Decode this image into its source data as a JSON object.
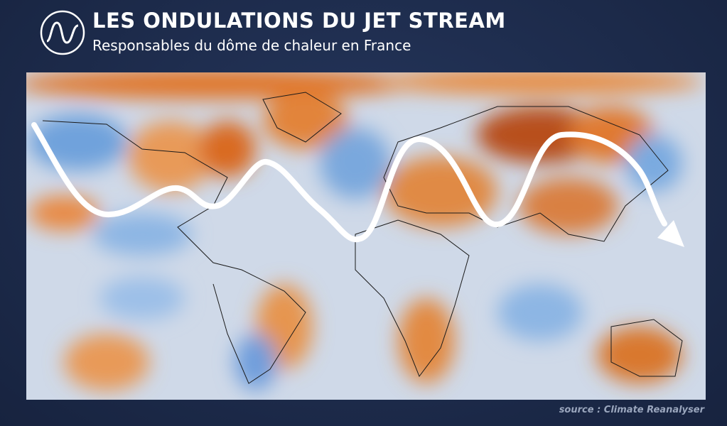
{
  "header": {
    "title": "LES ONDULATIONS DU JET STREAM",
    "subtitle": "Responsables du dôme de chaleur en France"
  },
  "footer": {
    "source": "source : Climate Reanalyser"
  }
}
